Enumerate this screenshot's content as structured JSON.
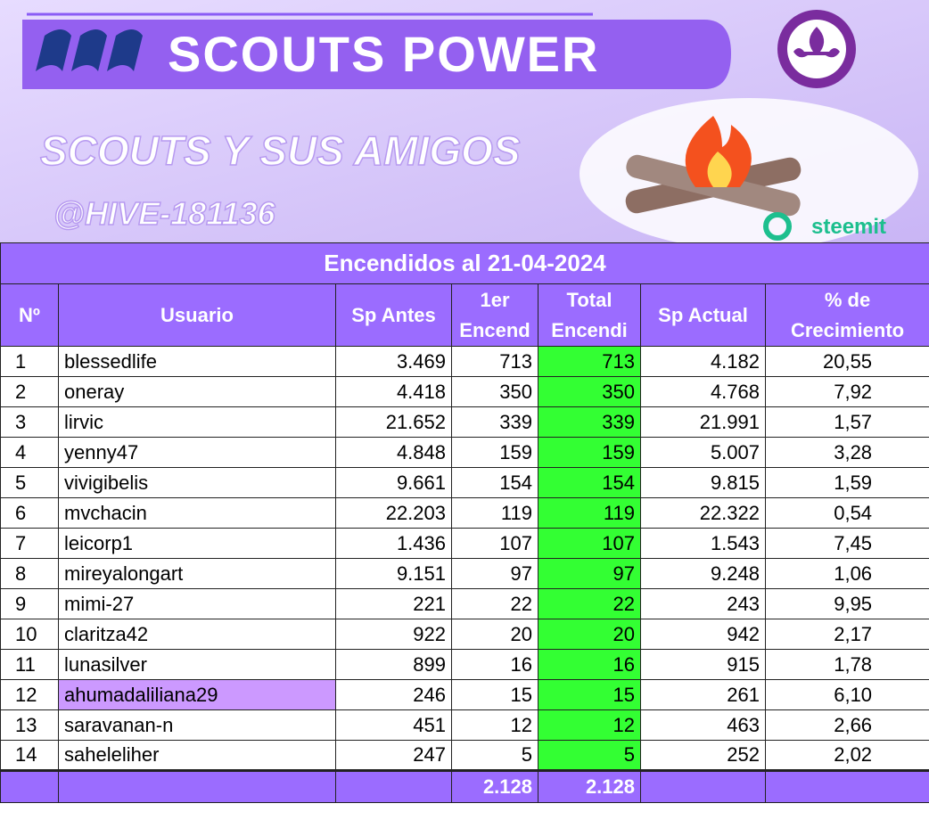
{
  "banner": {
    "title": "SCOUTS POWER",
    "subtitle": "SCOUTS Y SUS AMIGOS",
    "handle": "@HIVE-181136",
    "brand": "steemit"
  },
  "table": {
    "title": "Encendidos al 21-04-2024",
    "headers": [
      "Nº",
      "Usuario",
      "Sp Antes",
      "1er\nEncend",
      "Total\nEncendi",
      "Sp Actual",
      "% de\nCrecimiento"
    ],
    "rows": [
      [
        "1",
        "blessedlife",
        "3.469",
        "713",
        "713",
        "4.182",
        "20,55"
      ],
      [
        "2",
        "oneray",
        "4.418",
        "350",
        "350",
        "4.768",
        "7,92"
      ],
      [
        "3",
        "lirvic",
        "21.652",
        "339",
        "339",
        "21.991",
        "1,57"
      ],
      [
        "4",
        "yenny47",
        "4.848",
        "159",
        "159",
        "5.007",
        "3,28"
      ],
      [
        "5",
        "vivigibelis",
        "9.661",
        "154",
        "154",
        "9.815",
        "1,59"
      ],
      [
        "6",
        "mvchacin",
        "22.203",
        "119",
        "119",
        "22.322",
        "0,54"
      ],
      [
        "7",
        "leicorp1",
        "1.436",
        "107",
        "107",
        "1.543",
        "7,45"
      ],
      [
        "8",
        "mireyalongart",
        "9.151",
        "97",
        "97",
        "9.248",
        "1,06"
      ],
      [
        "9",
        "mimi-27",
        "221",
        "22",
        "22",
        "243",
        "9,95"
      ],
      [
        "10",
        "claritza42",
        "922",
        "20",
        "20",
        "942",
        "2,17"
      ],
      [
        "11",
        "lunasilver",
        "899",
        "16",
        "16",
        "915",
        "1,78"
      ],
      [
        "12",
        "ahumadaliliana29",
        "246",
        "15",
        "15",
        "261",
        "6,10"
      ],
      [
        "13",
        "saravanan-n",
        "451",
        "12",
        "12",
        "463",
        "2,66"
      ],
      [
        "14",
        "saheleliher",
        "247",
        "5",
        "5",
        "252",
        "2,02"
      ]
    ],
    "totals": [
      "2.128",
      "2.128"
    ]
  }
}
